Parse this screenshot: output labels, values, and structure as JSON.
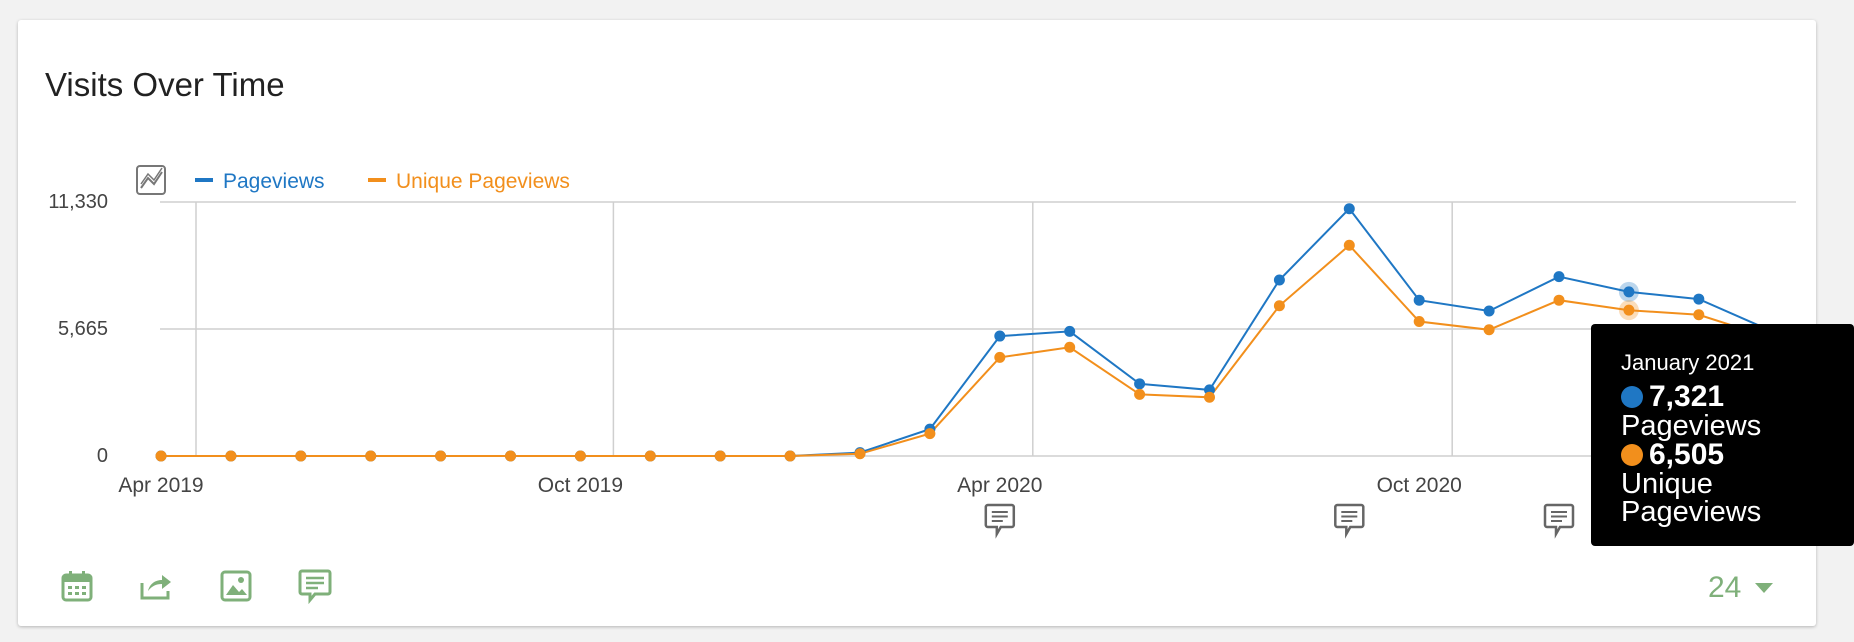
{
  "widget": {
    "title": "Visits Over Time"
  },
  "chart_data": {
    "type": "line",
    "x": [
      "2019-04",
      "2019-05",
      "2019-06",
      "2019-07",
      "2019-08",
      "2019-09",
      "2019-10",
      "2019-11",
      "2019-12",
      "2020-01",
      "2020-02",
      "2020-03",
      "2020-04",
      "2020-05",
      "2020-06",
      "2020-07",
      "2020-08",
      "2020-09",
      "2020-10",
      "2020-11",
      "2020-12",
      "2021-01",
      "2021-02",
      "2021-03"
    ],
    "xtick_labels": [
      "Apr 2019",
      "Oct 2019",
      "Apr 2020",
      "Oct 2020"
    ],
    "xtick_positions": [
      "2019-04",
      "2019-10",
      "2020-04",
      "2020-10"
    ],
    "yticks": [
      0,
      5665,
      11330
    ],
    "ytick_labels": [
      "0",
      "5,665",
      "11,330"
    ],
    "ylim": [
      0,
      11330
    ],
    "grid": true,
    "legend_placement": "top-left",
    "series": [
      {
        "name": "Pageviews",
        "color": "#1f77c4",
        "values": [
          0,
          0,
          0,
          0,
          0,
          0,
          0,
          0,
          0,
          0,
          150,
          1200,
          5350,
          5560,
          3220,
          2950,
          7850,
          11030,
          6950,
          6470,
          8000,
          7321,
          7000,
          5630
        ]
      },
      {
        "name": "Unique Pageviews",
        "color": "#f28f1c",
        "values": [
          0,
          0,
          0,
          0,
          0,
          0,
          0,
          0,
          0,
          0,
          100,
          1000,
          4400,
          4850,
          2750,
          2620,
          6700,
          9400,
          6000,
          5630,
          6950,
          6505,
          6300,
          5300
        ]
      }
    ],
    "annotation_months": [
      "2020-04",
      "2020-09",
      "2020-12"
    ],
    "highlight_month": "2021-01"
  },
  "tooltip": {
    "title": "January 2021",
    "rows": [
      {
        "value": "7,321",
        "label": "Pageviews",
        "color": "#1f77c4"
      },
      {
        "value": "6,505",
        "label": "Unique Pageviews",
        "color": "#f28f1c"
      }
    ]
  },
  "toolbar": {
    "icons": [
      "calendar-icon",
      "export-icon",
      "image-icon",
      "annotation-icon"
    ],
    "accent": "#7fb07a"
  },
  "period": {
    "value": "24"
  }
}
